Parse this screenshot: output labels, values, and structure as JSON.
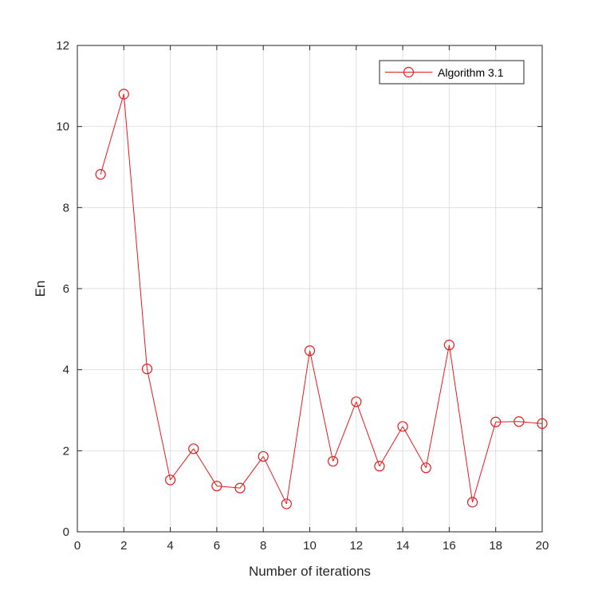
{
  "chart_data": {
    "type": "line",
    "title": "",
    "xlabel": "Number of iterations",
    "ylabel": "En",
    "xlim": [
      0,
      20
    ],
    "ylim": [
      0,
      12
    ],
    "xticks": [
      0,
      2,
      4,
      6,
      8,
      10,
      12,
      14,
      16,
      18,
      20
    ],
    "yticks": [
      0,
      2,
      4,
      6,
      8,
      10,
      12
    ],
    "grid": true,
    "legend_position": "top-right",
    "series": [
      {
        "name": "Algorithm 3.1",
        "color": "#e41a1c",
        "marker": "circle-open",
        "x": [
          1,
          2,
          3,
          4,
          5,
          6,
          7,
          8,
          9,
          10,
          11,
          12,
          13,
          14,
          15,
          16,
          17,
          18,
          19,
          20
        ],
        "y": [
          8.82,
          10.8,
          4.02,
          1.28,
          2.05,
          1.13,
          1.08,
          1.86,
          0.69,
          4.47,
          1.74,
          3.21,
          1.62,
          2.6,
          1.58,
          4.61,
          0.73,
          2.71,
          2.72,
          2.67
        ]
      }
    ]
  }
}
